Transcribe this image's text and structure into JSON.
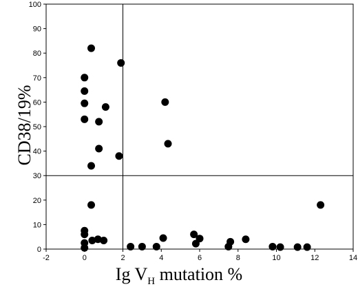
{
  "chart_data": {
    "type": "scatter",
    "title": "",
    "xlabel": "Ig VH mutation %",
    "xlabel_parts": {
      "pre": "Ig V",
      "sub": "H",
      "post": " mutation %"
    },
    "ylabel": "CD38/19%",
    "xlim": [
      -2,
      14
    ],
    "ylim": [
      0,
      100
    ],
    "x_ticks": [
      -2,
      0,
      2,
      4,
      6,
      8,
      10,
      12,
      14
    ],
    "y_ticks": [
      0,
      10,
      20,
      30,
      40,
      50,
      60,
      70,
      80,
      90,
      100
    ],
    "reference_lines": {
      "x": 2,
      "y": 30
    },
    "grid": false,
    "marker_color": "#000000",
    "points": [
      {
        "x": 0.35,
        "y": 82
      },
      {
        "x": 1.9,
        "y": 76
      },
      {
        "x": 0.0,
        "y": 70
      },
      {
        "x": 0.0,
        "y": 64.5
      },
      {
        "x": 4.2,
        "y": 60
      },
      {
        "x": 0.0,
        "y": 59.5
      },
      {
        "x": 1.1,
        "y": 58
      },
      {
        "x": 0.0,
        "y": 53
      },
      {
        "x": 0.75,
        "y": 52
      },
      {
        "x": 4.35,
        "y": 43
      },
      {
        "x": 0.75,
        "y": 41
      },
      {
        "x": 1.8,
        "y": 38
      },
      {
        "x": 0.35,
        "y": 34
      },
      {
        "x": 0.35,
        "y": 18
      },
      {
        "x": 12.3,
        "y": 18
      },
      {
        "x": 0.0,
        "y": 7.5
      },
      {
        "x": 0.0,
        "y": 6
      },
      {
        "x": 5.7,
        "y": 6
      },
      {
        "x": 4.1,
        "y": 4.5
      },
      {
        "x": 6.0,
        "y": 4.3
      },
      {
        "x": 0.4,
        "y": 3.5
      },
      {
        "x": 0.7,
        "y": 4
      },
      {
        "x": 1.0,
        "y": 3.5
      },
      {
        "x": 8.4,
        "y": 4
      },
      {
        "x": 7.6,
        "y": 3
      },
      {
        "x": 0.0,
        "y": 2.5
      },
      {
        "x": 5.8,
        "y": 2.2
      },
      {
        "x": 2.4,
        "y": 1
      },
      {
        "x": 3.0,
        "y": 1
      },
      {
        "x": 3.75,
        "y": 1
      },
      {
        "x": 7.5,
        "y": 1
      },
      {
        "x": 9.8,
        "y": 1
      },
      {
        "x": 10.2,
        "y": 0.8
      },
      {
        "x": 11.1,
        "y": 0.8
      },
      {
        "x": 11.6,
        "y": 0.8
      },
      {
        "x": 0.0,
        "y": 0.5
      }
    ]
  }
}
